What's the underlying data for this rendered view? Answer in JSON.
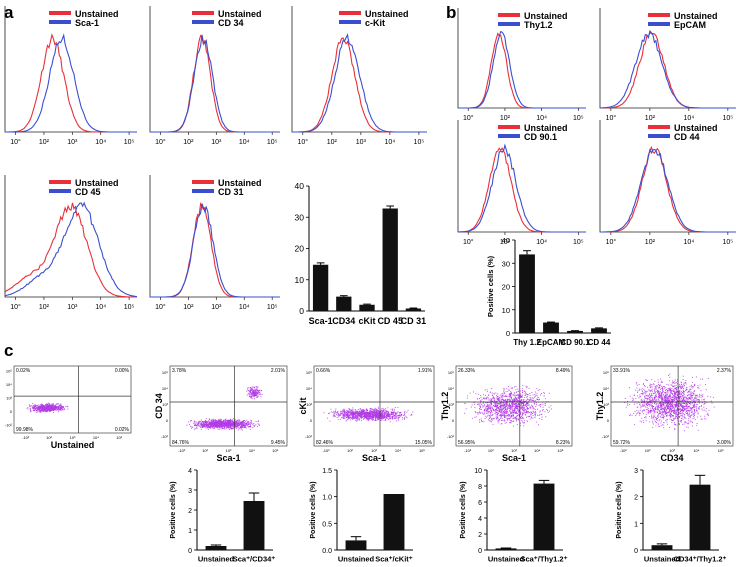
{
  "panel_labels": [
    "a",
    "b",
    "c"
  ],
  "colors": {
    "unstained": "#e8303a",
    "marker": "#3a4fd0",
    "bar": "#111111",
    "dots": "#b23be6"
  },
  "chart_data": [
    {
      "id": "hA1",
      "type": "histogram",
      "panel": "a",
      "legend": [
        "Unstained",
        "Sca-1"
      ],
      "xticks": [
        "10°",
        "10²",
        "10³",
        "10⁴",
        "10⁵"
      ],
      "unstained_peak": 0.36,
      "marker_peak": 0.43,
      "spread": 0.085,
      "noise": 0
    },
    {
      "id": "hA2",
      "type": "histogram",
      "panel": "a",
      "legend": [
        "Unstained",
        "CD 34"
      ],
      "xticks": [
        "10°",
        "10²",
        "10³",
        "10⁴",
        "10⁵"
      ],
      "unstained_peak": 0.4,
      "marker_peak": 0.41,
      "spread": 0.065,
      "noise": 0
    },
    {
      "id": "hA3",
      "type": "histogram",
      "panel": "a",
      "legend": [
        "Unstained",
        "c-Kit"
      ],
      "xticks": [
        "10°",
        "10²",
        "10³",
        "10⁴",
        "10⁵"
      ],
      "unstained_peak": 0.38,
      "marker_peak": 0.41,
      "spread": 0.085,
      "noise": 0
    },
    {
      "id": "hA4",
      "type": "histogram",
      "panel": "a",
      "legend": [
        "Unstained",
        "CD 45"
      ],
      "xticks": [
        "10°",
        "10²",
        "10³",
        "10⁴",
        "10⁵"
      ],
      "unstained_peak": 0.5,
      "marker_peak": 0.58,
      "spread": 0.12,
      "noise": 0.22
    },
    {
      "id": "hA5",
      "type": "histogram",
      "panel": "a",
      "legend": [
        "Unstained",
        "CD 31"
      ],
      "xticks": [
        "10°",
        "10²",
        "10³",
        "10⁴",
        "10⁵"
      ],
      "unstained_peak": 0.4,
      "marker_peak": 0.41,
      "spread": 0.07,
      "noise": 0
    },
    {
      "id": "hB1",
      "type": "histogram",
      "panel": "b",
      "legend": [
        "Unstained",
        "Thy1.2"
      ],
      "xticks": [
        "10°",
        "10²",
        "10⁴",
        "10⁵"
      ],
      "unstained_peak": 0.32,
      "marker_peak": 0.34,
      "spread": 0.06,
      "noise": 0
    },
    {
      "id": "hB2",
      "type": "histogram",
      "panel": "b",
      "legend": [
        "Unstained",
        "EpCAM"
      ],
      "xticks": [
        "10°",
        "10²",
        "10⁴",
        "10⁵"
      ],
      "unstained_peak": 0.38,
      "marker_peak": 0.36,
      "spread": 0.09,
      "noise": 0
    },
    {
      "id": "hB3",
      "type": "histogram",
      "panel": "b",
      "legend": [
        "Unstained",
        "CD 90.1"
      ],
      "xticks": [
        "10°",
        "10²",
        "10⁴",
        "10⁵"
      ],
      "unstained_peak": 0.33,
      "marker_peak": 0.36,
      "spread": 0.085,
      "noise": 0
    },
    {
      "id": "hB4",
      "type": "histogram",
      "panel": "b",
      "legend": [
        "Unstained",
        "CD 44"
      ],
      "xticks": [
        "10°",
        "10²",
        "10⁴",
        "10⁵"
      ],
      "unstained_peak": 0.4,
      "marker_peak": 0.4,
      "spread": 0.09,
      "noise": 0
    },
    {
      "id": "barA",
      "type": "bar",
      "panel": "a",
      "categories": [
        "Sca-1",
        "CD34",
        "cKit",
        "CD 45",
        "CD 31"
      ],
      "values": [
        14.8,
        4.6,
        2.0,
        32.8,
        0.8
      ],
      "errors": [
        0.6,
        0.3,
        0.2,
        0.8,
        0.15
      ],
      "ylim": [
        0,
        40
      ],
      "yticks": [
        0,
        10,
        20,
        30,
        40
      ],
      "ylabel": ""
    },
    {
      "id": "barB",
      "type": "bar",
      "panel": "b",
      "categories": [
        "Thy 1.2",
        "EpCAM",
        "CD 90.1",
        "CD 44"
      ],
      "values": [
        33.8,
        4.5,
        0.9,
        2.0
      ],
      "errors": [
        1.6,
        0.2,
        0.1,
        0.2
      ],
      "ylim": [
        0,
        40
      ],
      "yticks": [
        0,
        10,
        20,
        30,
        40
      ],
      "ylabel": "Positive cells (%)"
    },
    {
      "id": "dp1",
      "type": "scatter",
      "panel": "c",
      "xlabel": "Unstained",
      "ylabel": "",
      "quadrants": [
        "0.02%",
        "0.00%",
        "99.98%",
        "0.02%"
      ],
      "xticks": [
        "-10²",
        "10²",
        "10³",
        "10⁴",
        "10⁵"
      ],
      "yticks": [
        "10⁵",
        "10⁴",
        "10³",
        "0",
        "-10²"
      ],
      "clusters": [
        {
          "cx": 0.28,
          "cy": 0.62,
          "rx": 0.2,
          "ry": 0.08,
          "n": 650
        }
      ]
    },
    {
      "id": "dp2",
      "type": "scatter",
      "panel": "c",
      "xlabel": "Sca-1",
      "ylabel": "CD 34",
      "quadrants": [
        "3.78%",
        "2.01%",
        "84.76%",
        "9.45%"
      ],
      "xticks": [
        "-10²",
        "10²",
        "10³",
        "10⁴",
        "10⁵"
      ],
      "yticks": [
        "10⁵",
        "10⁴",
        "10³",
        "0",
        "-10²"
      ],
      "clusters": [
        {
          "cx": 0.45,
          "cy": 0.72,
          "rx": 0.35,
          "ry": 0.08,
          "n": 1100
        },
        {
          "cx": 0.72,
          "cy": 0.32,
          "rx": 0.08,
          "ry": 0.1,
          "n": 180
        }
      ]
    },
    {
      "id": "dp3",
      "type": "scatter",
      "panel": "c",
      "xlabel": "Sca-1",
      "ylabel": "cKit",
      "quadrants": [
        "0.66%",
        "1.91%",
        "82.46%",
        "15.05%"
      ],
      "xticks": [
        "-10²",
        "10²",
        "10³",
        "10⁴",
        "10⁵"
      ],
      "yticks": [
        "10⁵",
        "10⁴",
        "10³",
        "0",
        "-10²"
      ],
      "clusters": [
        {
          "cx": 0.45,
          "cy": 0.6,
          "rx": 0.4,
          "ry": 0.1,
          "n": 1200
        }
      ]
    },
    {
      "id": "dp4",
      "type": "scatter",
      "panel": "c",
      "xlabel": "Sca-1",
      "ylabel": "Thy1.2",
      "quadrants": [
        "26.33%",
        "8.49%",
        "56.95%",
        "8.23%"
      ],
      "xticks": [
        "-10²",
        "10²",
        "10³",
        "10⁴",
        "10⁵"
      ],
      "yticks": [
        "10⁵",
        "10⁴",
        "10³",
        "0",
        "-10²"
      ],
      "clusters": [
        {
          "cx": 0.45,
          "cy": 0.5,
          "rx": 0.42,
          "ry": 0.3,
          "n": 1200
        }
      ]
    },
    {
      "id": "dp5",
      "type": "scatter",
      "panel": "c",
      "xlabel": "CD34",
      "ylabel": "Thy1.2",
      "quadrants": [
        "33.91%",
        "2.37%",
        "59.72%",
        "3.00%"
      ],
      "xticks": [
        "-10²",
        "10²",
        "10³",
        "10⁴",
        "10⁵"
      ],
      "yticks": [
        "10⁵",
        "10⁴",
        "10³",
        "0",
        "-10²"
      ],
      "clusters": [
        {
          "cx": 0.48,
          "cy": 0.45,
          "rx": 0.4,
          "ry": 0.38,
          "n": 1600
        }
      ]
    },
    {
      "id": "cb1",
      "type": "bar",
      "panel": "c",
      "categories": [
        "Unstained",
        "Sca⁺/CD34⁺"
      ],
      "values": [
        0.2,
        2.45
      ],
      "errors": [
        0.05,
        0.4
      ],
      "ylim": [
        0,
        4
      ],
      "yticks": [
        0,
        1,
        2,
        3,
        4
      ],
      "ylabel": "Positive cells (%)"
    },
    {
      "id": "cb2",
      "type": "bar",
      "panel": "c",
      "categories": [
        "Unstained",
        "Sca⁺/cKit⁺"
      ],
      "values": [
        0.18,
        1.05
      ],
      "errors": [
        0.07,
        0
      ],
      "ylim": [
        0,
        1.5
      ],
      "yticks": [
        0.0,
        0.5,
        1.0,
        1.5
      ],
      "ylabel": "Positive cells (%)"
    },
    {
      "id": "cb3",
      "type": "bar",
      "panel": "c",
      "categories": [
        "Unstained",
        "Sca⁺/Thy1.2⁺"
      ],
      "values": [
        0.2,
        8.3
      ],
      "errors": [
        0.05,
        0.4
      ],
      "ylim": [
        0,
        10
      ],
      "yticks": [
        0,
        2,
        4,
        6,
        8,
        10
      ],
      "ylabel": "Positive cells (%)"
    },
    {
      "id": "cb4",
      "type": "bar",
      "panel": "c",
      "categories": [
        "Unstained",
        "CD34⁺/Thy1.2⁺"
      ],
      "values": [
        0.18,
        2.45
      ],
      "errors": [
        0.05,
        0.35
      ],
      "ylim": [
        0,
        3
      ],
      "yticks": [
        0,
        1,
        2,
        3
      ],
      "ylabel": "Positive cells (%)"
    }
  ]
}
